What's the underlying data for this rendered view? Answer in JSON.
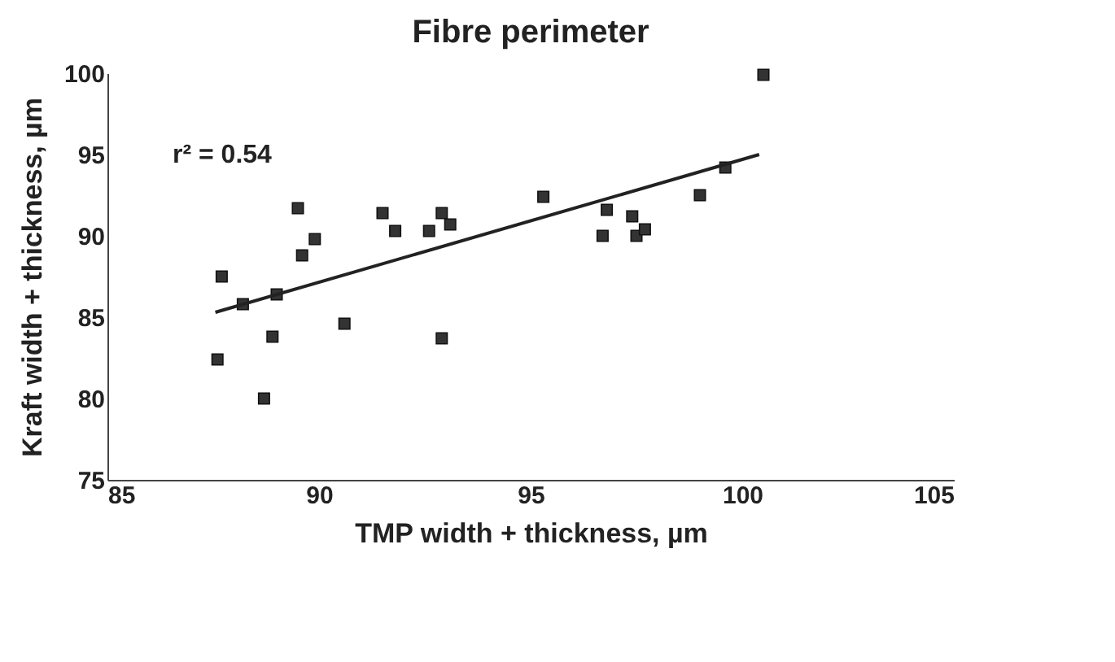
{
  "chart_data": {
    "type": "scatter",
    "title": "Fibre perimeter",
    "xlabel": "TMP width + thickness, µm",
    "ylabel": "Kraft width + thickness, µm",
    "xlim": [
      85,
      105
    ],
    "xticks": [
      85,
      90,
      95,
      100,
      105
    ],
    "ylim": [
      75,
      100
    ],
    "yticks": [
      75,
      80,
      85,
      90,
      95,
      100
    ],
    "grid": false,
    "annotations": [
      "r² = 0.54"
    ],
    "series": [
      {
        "color": "#333333",
        "marker": "square",
        "x": [
          87.6,
          87.7,
          88.2,
          89.0,
          88.9,
          88.7,
          89.5,
          89.9,
          89.6,
          90.6,
          91.5,
          91.8,
          92.6,
          92.9,
          93.1,
          92.9,
          95.3,
          100.5,
          96.8,
          96.7,
          97.4,
          97.5,
          97.7,
          99.0,
          99.6
        ],
        "values": [
          82.4,
          87.5,
          85.8,
          86.4,
          83.8,
          80.0,
          91.7,
          89.8,
          88.8,
          84.6,
          91.4,
          90.3,
          90.3,
          91.4,
          90.7,
          83.7,
          92.4,
          99.9,
          91.6,
          90.0,
          91.2,
          90.0,
          90.4,
          92.5,
          94.2
        ]
      },
      {
        "type": "line",
        "color": "#222222",
        "line_style": "solid",
        "marker": "none",
        "x": [
          87.55,
          100.4
        ],
        "values": [
          85.3,
          95.0
        ]
      }
    ]
  }
}
